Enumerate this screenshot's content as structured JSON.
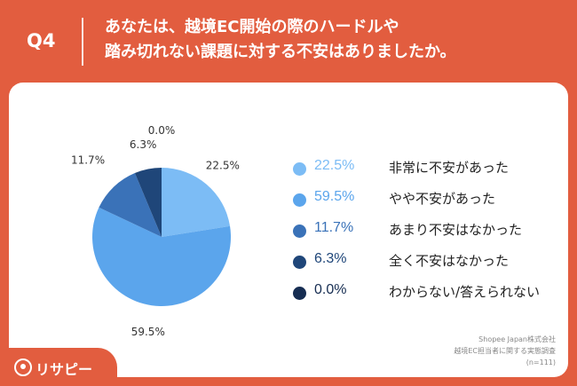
{
  "header": {
    "question": "Q4",
    "title_line1": "あなたは、越境EC開始の際のハードルや",
    "title_line2": "踏み切れない課題に対する不安はありましたか。"
  },
  "chart_data": {
    "type": "pie",
    "title": "",
    "slices": [
      {
        "label": "非常に不安があった",
        "value": 22.5,
        "display": "22.5%",
        "color": "#7cbcf5"
      },
      {
        "label": "やや不安があった",
        "value": 59.5,
        "display": "59.5%",
        "color": "#5ba5ec"
      },
      {
        "label": "あまり不安はなかった",
        "value": 11.7,
        "display": "11.7%",
        "color": "#3a72b8"
      },
      {
        "label": "全く不安はなかった",
        "value": 6.3,
        "display": "6.3%",
        "color": "#1f4679"
      },
      {
        "label": "わからない/答えられない",
        "value": 0.0,
        "display": "0.0%",
        "color": "#162d52"
      }
    ],
    "legend_position": "right"
  },
  "source": {
    "line1": "Shopee Japan株式会社",
    "line2": "越境EC担当者に関する実態調査",
    "line3": "(n=111)"
  },
  "brand": {
    "name": "リサピー",
    "icon": "magnifier-logo-icon"
  },
  "colors": {
    "accent": "#e25d3f",
    "card": "#ffffff"
  }
}
